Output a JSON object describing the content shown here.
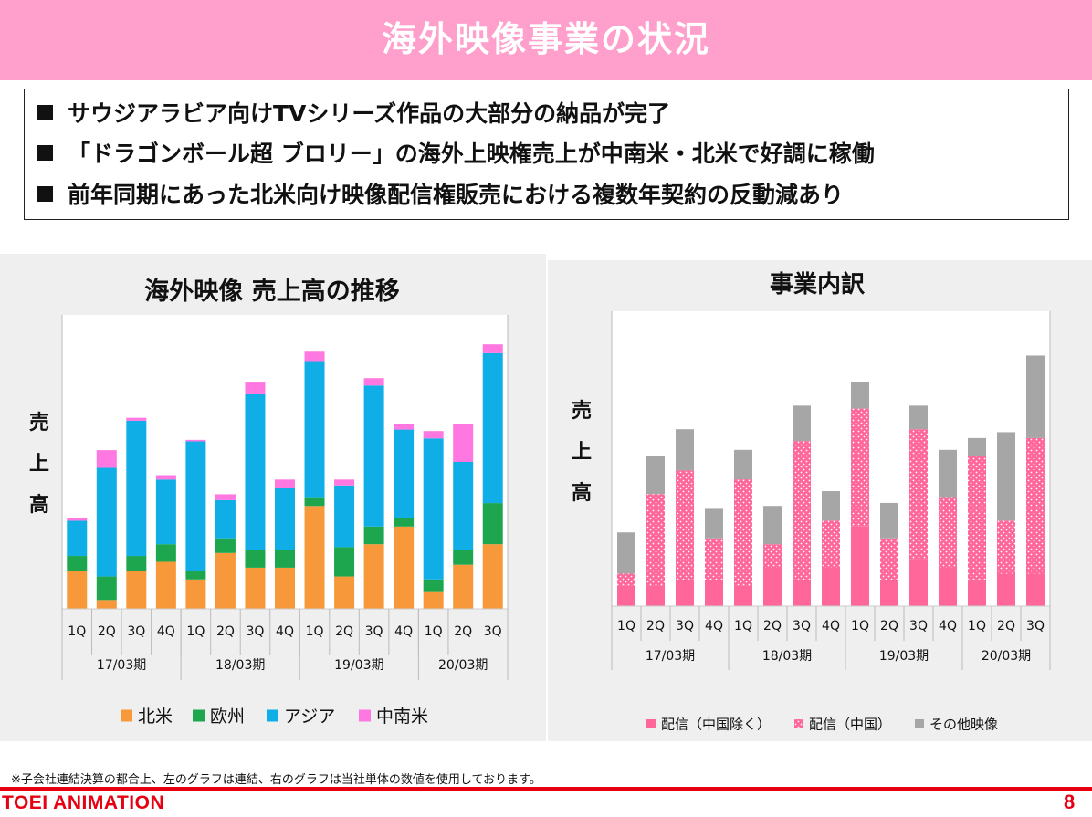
{
  "header": {
    "title": "海外映像事業の状況"
  },
  "bullets": [
    "サウジアラビア向けTVシリーズ作品の大部分の納品が完了",
    "「ドラゴンボール超 ブロリー」の海外上映権売上が中南米・北米で好調に稼働",
    "前年同期にあった北米向け映像配信権販売における複数年契約の反動減あり"
  ],
  "footnote": "※子会社連結決算の都合上、左のグラフは連結、右のグラフは当社単体の数値を使用しております。",
  "footer": {
    "brand": "TOEI ANIMATION",
    "page": "8"
  },
  "chart_data": [
    {
      "type": "bar",
      "stacked": true,
      "title": "海外映像 売上高の推移",
      "ylabel": "売上高",
      "categories": [
        "1Q",
        "2Q",
        "3Q",
        "4Q",
        "1Q",
        "2Q",
        "3Q",
        "4Q",
        "1Q",
        "2Q",
        "3Q",
        "4Q",
        "1Q",
        "2Q",
        "3Q"
      ],
      "groups": [
        {
          "label": "17/03期",
          "count": 4
        },
        {
          "label": "18/03期",
          "count": 4
        },
        {
          "label": "19/03期",
          "count": 4
        },
        {
          "label": "20/03期",
          "count": 3
        }
      ],
      "ylim": [
        0,
        100
      ],
      "grid": false,
      "legend_position": "bottom",
      "series": [
        {
          "name": "北米",
          "color": "#f7993a",
          "values": [
            13,
            3,
            13,
            16,
            10,
            19,
            14,
            14,
            35,
            11,
            22,
            28,
            6,
            15,
            22
          ]
        },
        {
          "name": "欧州",
          "color": "#1ea64f",
          "values": [
            5,
            8,
            5,
            6,
            3,
            5,
            6,
            6,
            3,
            10,
            6,
            3,
            4,
            5,
            14
          ]
        },
        {
          "name": "アジア",
          "color": "#10aee6",
          "values": [
            12,
            37,
            46,
            22,
            44,
            13,
            53,
            21,
            46,
            21,
            48,
            30,
            48,
            30,
            51
          ]
        },
        {
          "name": "中南米",
          "color": "#ff77e0",
          "values": [
            1,
            6,
            1,
            1.5,
            0.5,
            2,
            4,
            3,
            3.5,
            2,
            2.5,
            2,
            2.5,
            13,
            3
          ]
        }
      ]
    },
    {
      "type": "bar",
      "stacked": true,
      "title": "事業内訳",
      "ylabel": "売上高",
      "categories": [
        "1Q",
        "2Q",
        "3Q",
        "4Q",
        "1Q",
        "2Q",
        "3Q",
        "4Q",
        "1Q",
        "2Q",
        "3Q",
        "4Q",
        "1Q",
        "2Q",
        "3Q"
      ],
      "groups": [
        {
          "label": "17/03期",
          "count": 4
        },
        {
          "label": "18/03期",
          "count": 4
        },
        {
          "label": "19/03期",
          "count": 4
        },
        {
          "label": "20/03期",
          "count": 3
        }
      ],
      "ylim": [
        0,
        100
      ],
      "grid": false,
      "legend_position": "bottom",
      "series": [
        {
          "name": "配信（中国除く）",
          "color": "#ff6699",
          "pattern": "solid",
          "values": [
            7,
            7,
            9,
            9,
            7,
            13,
            9,
            13,
            27,
            9,
            16,
            13,
            9,
            11,
            11
          ]
        },
        {
          "name": "配信（中国）",
          "color": "#ff6699",
          "pattern": "dots",
          "values": [
            4,
            31,
            37,
            14,
            36,
            8,
            47,
            16,
            40,
            14,
            44,
            24,
            42,
            18,
            46
          ]
        },
        {
          "name": "その他映像",
          "color": "#a6a6a6",
          "pattern": "solid",
          "values": [
            14,
            13,
            14,
            10,
            10,
            13,
            12,
            10,
            9,
            12,
            8,
            16,
            6,
            30,
            28
          ]
        }
      ]
    }
  ]
}
